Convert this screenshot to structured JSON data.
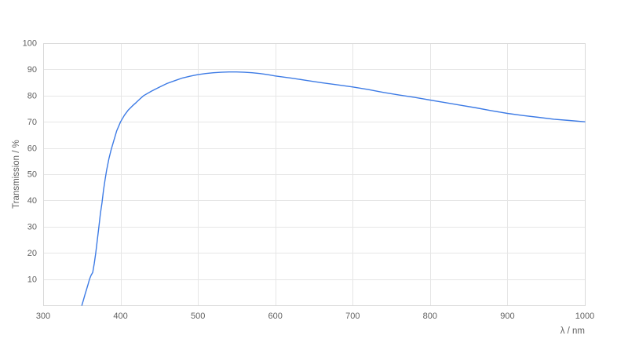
{
  "chart_data": {
    "type": "line",
    "title": "",
    "xlabel": "λ / nm",
    "ylabel": "Transmission / %",
    "xlim": [
      300,
      1000
    ],
    "ylim": [
      0,
      100
    ],
    "x_ticks": [
      300,
      400,
      500,
      600,
      700,
      800,
      900,
      1000
    ],
    "y_ticks": [
      10,
      20,
      30,
      40,
      50,
      60,
      70,
      80,
      90,
      100
    ],
    "grid": true,
    "legend": "none",
    "colors": {
      "line": "#3d7be5",
      "grid": "#e6e6e6",
      "border": "#d9d9d9",
      "tick_text": "#616161",
      "background": "#ffffff"
    },
    "series": [
      {
        "name": "Transmission",
        "color": "#3d7be5",
        "points": [
          [
            350,
            0
          ],
          [
            352,
            2
          ],
          [
            354,
            4
          ],
          [
            356,
            6
          ],
          [
            358,
            8
          ],
          [
            360,
            10
          ],
          [
            362,
            11.5
          ],
          [
            364,
            12.5
          ],
          [
            366,
            16
          ],
          [
            368,
            20
          ],
          [
            370,
            25
          ],
          [
            372,
            30
          ],
          [
            374,
            35
          ],
          [
            376,
            39
          ],
          [
            378,
            44
          ],
          [
            380,
            48
          ],
          [
            382,
            51.5
          ],
          [
            385,
            56
          ],
          [
            388,
            59.5
          ],
          [
            390,
            61.5
          ],
          [
            395,
            66.5
          ],
          [
            400,
            70
          ],
          [
            405,
            72.5
          ],
          [
            410,
            74.5
          ],
          [
            415,
            76
          ],
          [
            420,
            77.3
          ],
          [
            425,
            78.7
          ],
          [
            430,
            80
          ],
          [
            440,
            81.7
          ],
          [
            450,
            83.2
          ],
          [
            460,
            84.6
          ],
          [
            470,
            85.7
          ],
          [
            480,
            86.7
          ],
          [
            490,
            87.4
          ],
          [
            500,
            88
          ],
          [
            510,
            88.4
          ],
          [
            520,
            88.7
          ],
          [
            530,
            88.9
          ],
          [
            540,
            89
          ],
          [
            550,
            89
          ],
          [
            560,
            88.9
          ],
          [
            570,
            88.7
          ],
          [
            580,
            88.4
          ],
          [
            590,
            88
          ],
          [
            600,
            87.5
          ],
          [
            620,
            86.7
          ],
          [
            640,
            85.8
          ],
          [
            660,
            84.9
          ],
          [
            680,
            84.1
          ],
          [
            700,
            83.3
          ],
          [
            720,
            82.3
          ],
          [
            740,
            81.2
          ],
          [
            760,
            80.2
          ],
          [
            780,
            79.3
          ],
          [
            800,
            78.3
          ],
          [
            820,
            77.3
          ],
          [
            840,
            76.3
          ],
          [
            860,
            75.3
          ],
          [
            880,
            74.2
          ],
          [
            900,
            73.2
          ],
          [
            920,
            72.4
          ],
          [
            940,
            71.7
          ],
          [
            960,
            71
          ],
          [
            980,
            70.5
          ],
          [
            1000,
            70
          ]
        ]
      }
    ]
  }
}
